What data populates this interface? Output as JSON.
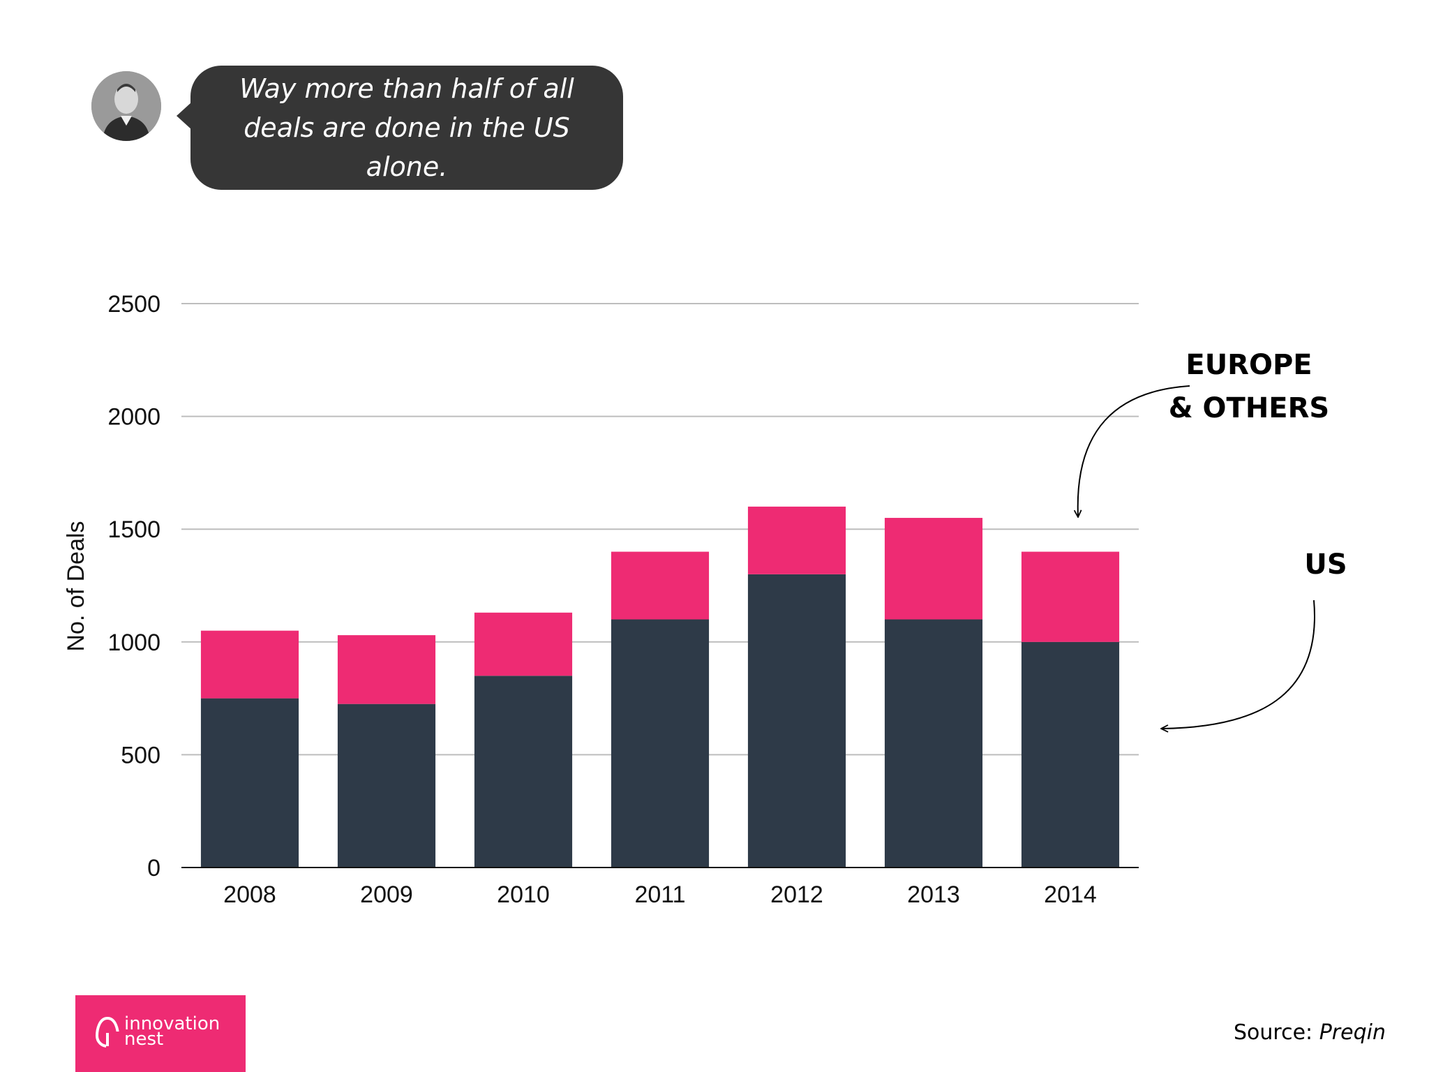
{
  "speech": {
    "line1": "Way more than half of all",
    "line2": "deals are done in the US alone."
  },
  "annotations": {
    "europe_line1": "EUROPE",
    "europe_line2": "& OTHERS",
    "us": "US"
  },
  "logo": {
    "line1": "innovation",
    "line2": "nest"
  },
  "source": {
    "label": "Source:",
    "name": "Preqin"
  },
  "colors": {
    "us": "#2e3a48",
    "europe": "#ee2b73",
    "grid": "#bdbdbd"
  },
  "chart_data": {
    "type": "bar",
    "stacked": true,
    "title": "",
    "xlabel": "",
    "ylabel": "No. of Deals",
    "ylim": [
      0,
      2500
    ],
    "yticks": [
      0,
      500,
      1000,
      1500,
      2000,
      2500
    ],
    "categories": [
      "2008",
      "2009",
      "2010",
      "2011",
      "2012",
      "2013",
      "2014"
    ],
    "series": [
      {
        "name": "US",
        "values": [
          750,
          725,
          850,
          1100,
          1300,
          1100,
          1000
        ]
      },
      {
        "name": "Europe & Others",
        "values": [
          300,
          305,
          280,
          300,
          300,
          450,
          400
        ]
      }
    ],
    "grid": true,
    "legend": "right"
  }
}
